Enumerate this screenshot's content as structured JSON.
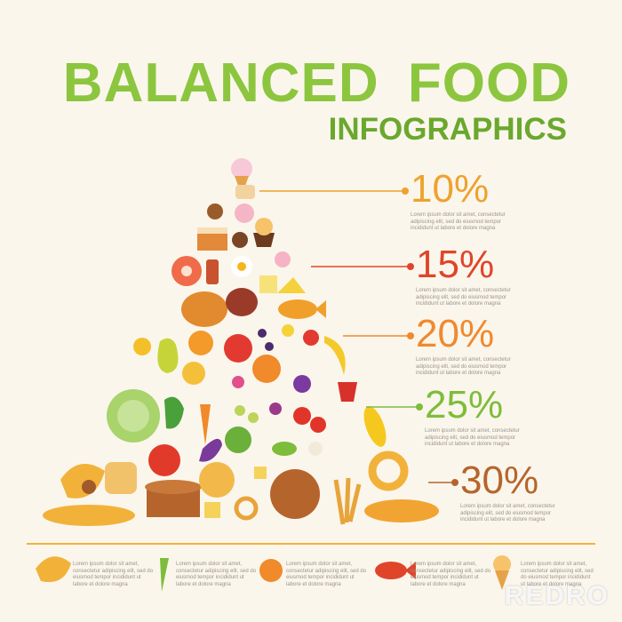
{
  "header": {
    "title": "BALANCED FOOD",
    "subtitle": "INFOGRAPHICS"
  },
  "levels": [
    {
      "percent": "10%",
      "color": "#eea22e",
      "text": "Lorem ipsum dolor sit amet, consectetur adipiscing elit, sed do eiusmod tempor incididunt ut labore et dolore magna"
    },
    {
      "percent": "15%",
      "color": "#e0452a",
      "text": "Lorem ipsum dolor sit amet, consectetur adipiscing elit, sed do eiusmod tempor incididunt ut labore et dolore magna"
    },
    {
      "percent": "20%",
      "color": "#f0892e",
      "text": "Lorem ipsum dolor sit amet, consectetur adipiscing elit, sed do eiusmod tempor incididunt ut labore et dolore magna"
    },
    {
      "percent": "25%",
      "color": "#7dbd3b",
      "text": "Lorem ipsum dolor sit amet, consectetur adipiscing elit, sed do eiusmod tempor incididunt ut labore et dolore magna"
    },
    {
      "percent": "30%",
      "color": "#b5652c",
      "text": "Lorem ipsum dolor sit amet, consectetur adipiscing elit, sed do eiusmod tempor incididunt ut labore et dolore magna"
    }
  ],
  "footer": [
    {
      "text": "Lorem ipsum dolor sit amet, consectetur adipiscing elit, sed do eiusmod tempor incididunt ut labore et dolore magna"
    },
    {
      "text": "Lorem ipsum dolor sit amet, consectetur adipiscing elit, sed do eiusmod tempor incididunt ut labore et dolore magna"
    },
    {
      "text": "Lorem ipsum dolor sit amet, consectetur adipiscing elit, sed do eiusmod tempor incididunt ut labore et dolore magna"
    },
    {
      "text": "Lorem ipsum dolor sit amet, consectetur adipiscing elit, sed do eiusmod tempor incididunt ut labore et dolore magna"
    },
    {
      "text": "Lorem ipsum dolor sit amet, consectetur adipiscing elit, sed do eiusmod tempor incididunt ut labore et dolore magna"
    }
  ],
  "watermark": "REDRO"
}
